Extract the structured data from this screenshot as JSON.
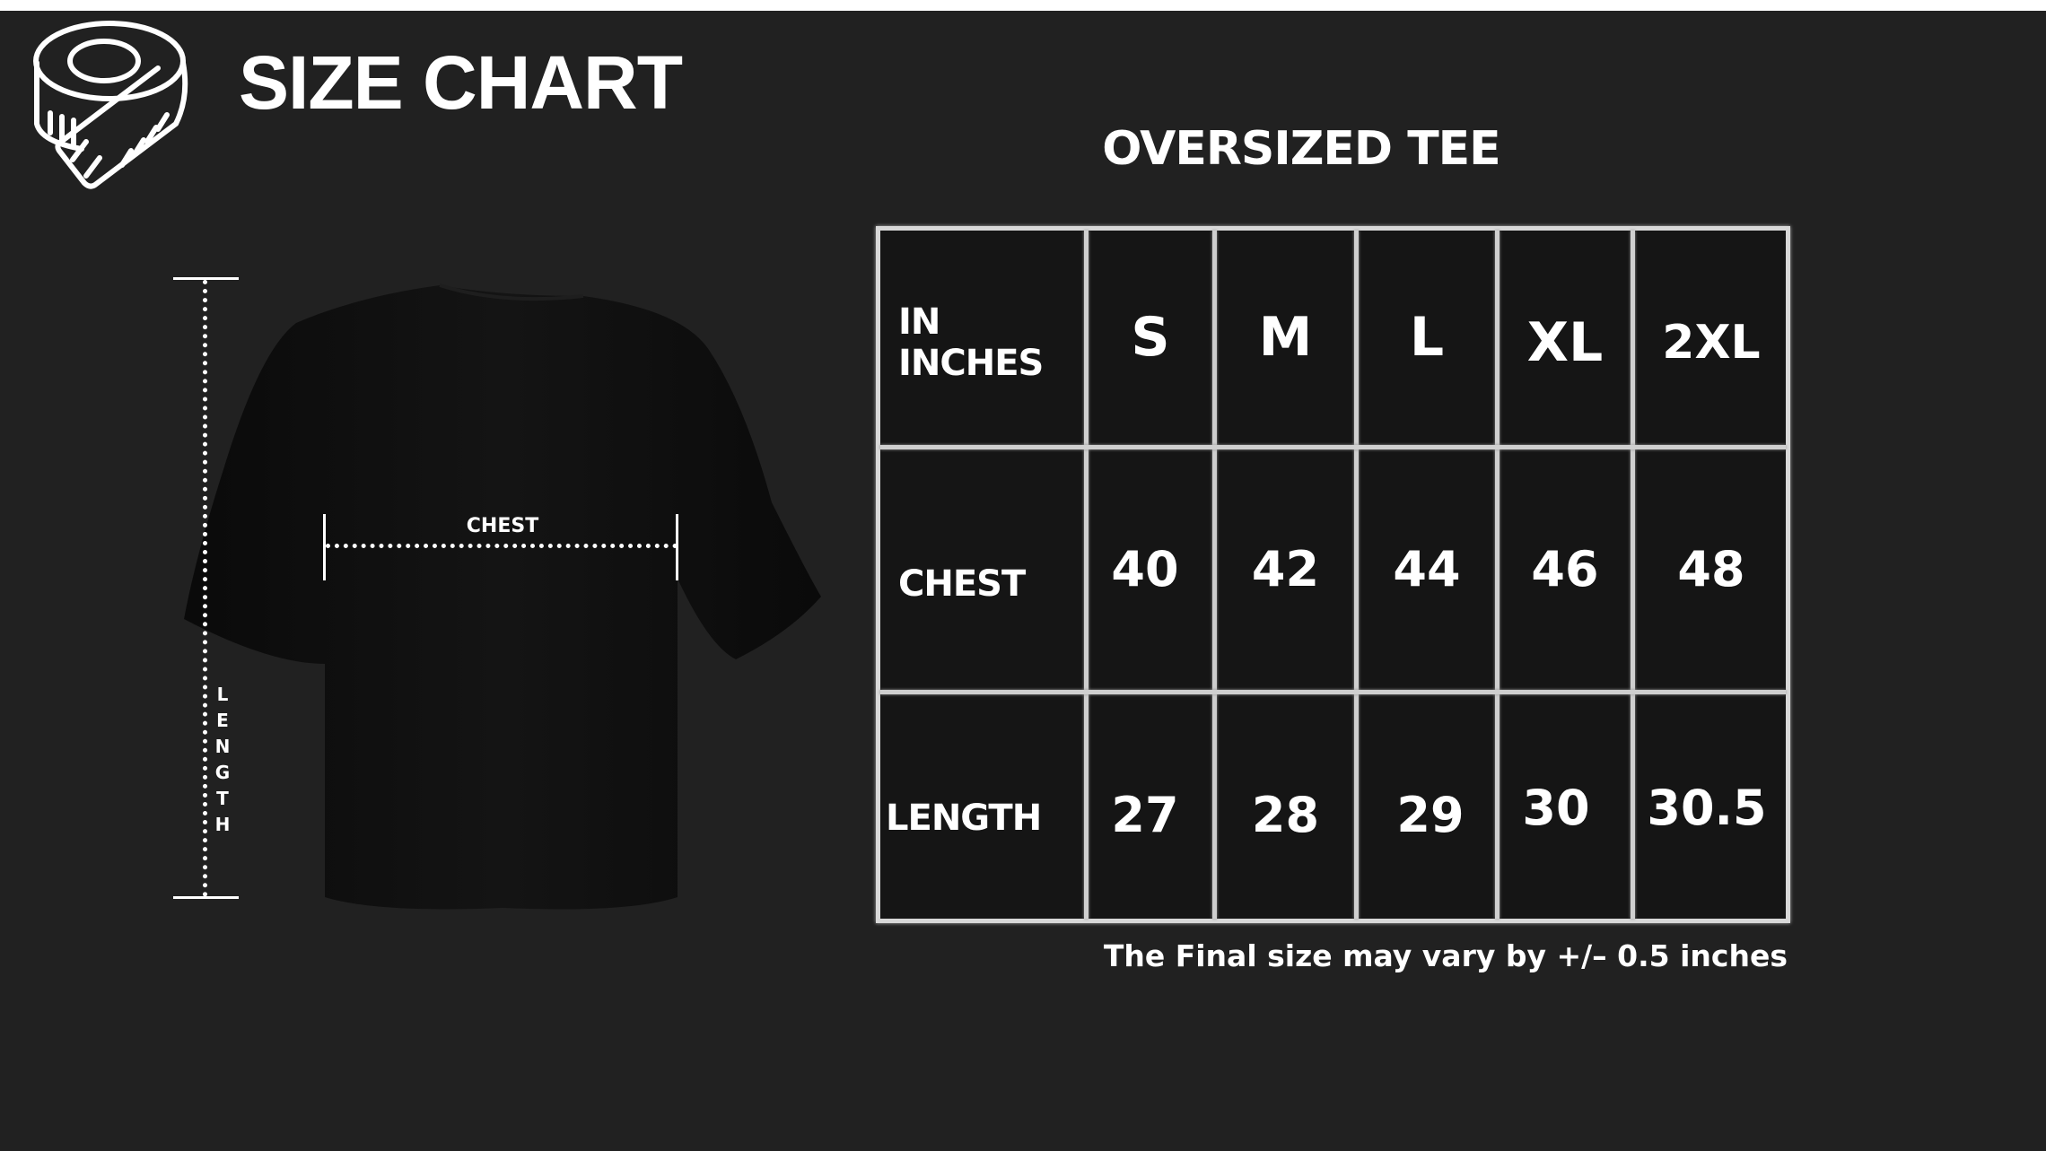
{
  "header": {
    "title": "SIZE CHART",
    "icon": "measuring-tape-icon"
  },
  "product": {
    "title": "OVERSIZED TEE"
  },
  "diagram": {
    "chest_label": "CHEST",
    "length_label": "LENGTH"
  },
  "table": {
    "unit_label_line1": "IN",
    "unit_label_line2": "INCHES",
    "sizes": [
      "S",
      "M",
      "L",
      "XL",
      "2XL"
    ],
    "rows": [
      {
        "label": "CHEST",
        "values": [
          "40",
          "42",
          "44",
          "46",
          "48"
        ]
      },
      {
        "label": "LENGTH",
        "values": [
          "27",
          "28",
          "29",
          "30",
          "30.5"
        ]
      }
    ]
  },
  "note": "The Final size may vary by +/– 0.5 inches",
  "colors": {
    "background": "#212121",
    "text": "#ffffff",
    "table_cell": "#151515",
    "grid": "#d8d8d8"
  }
}
